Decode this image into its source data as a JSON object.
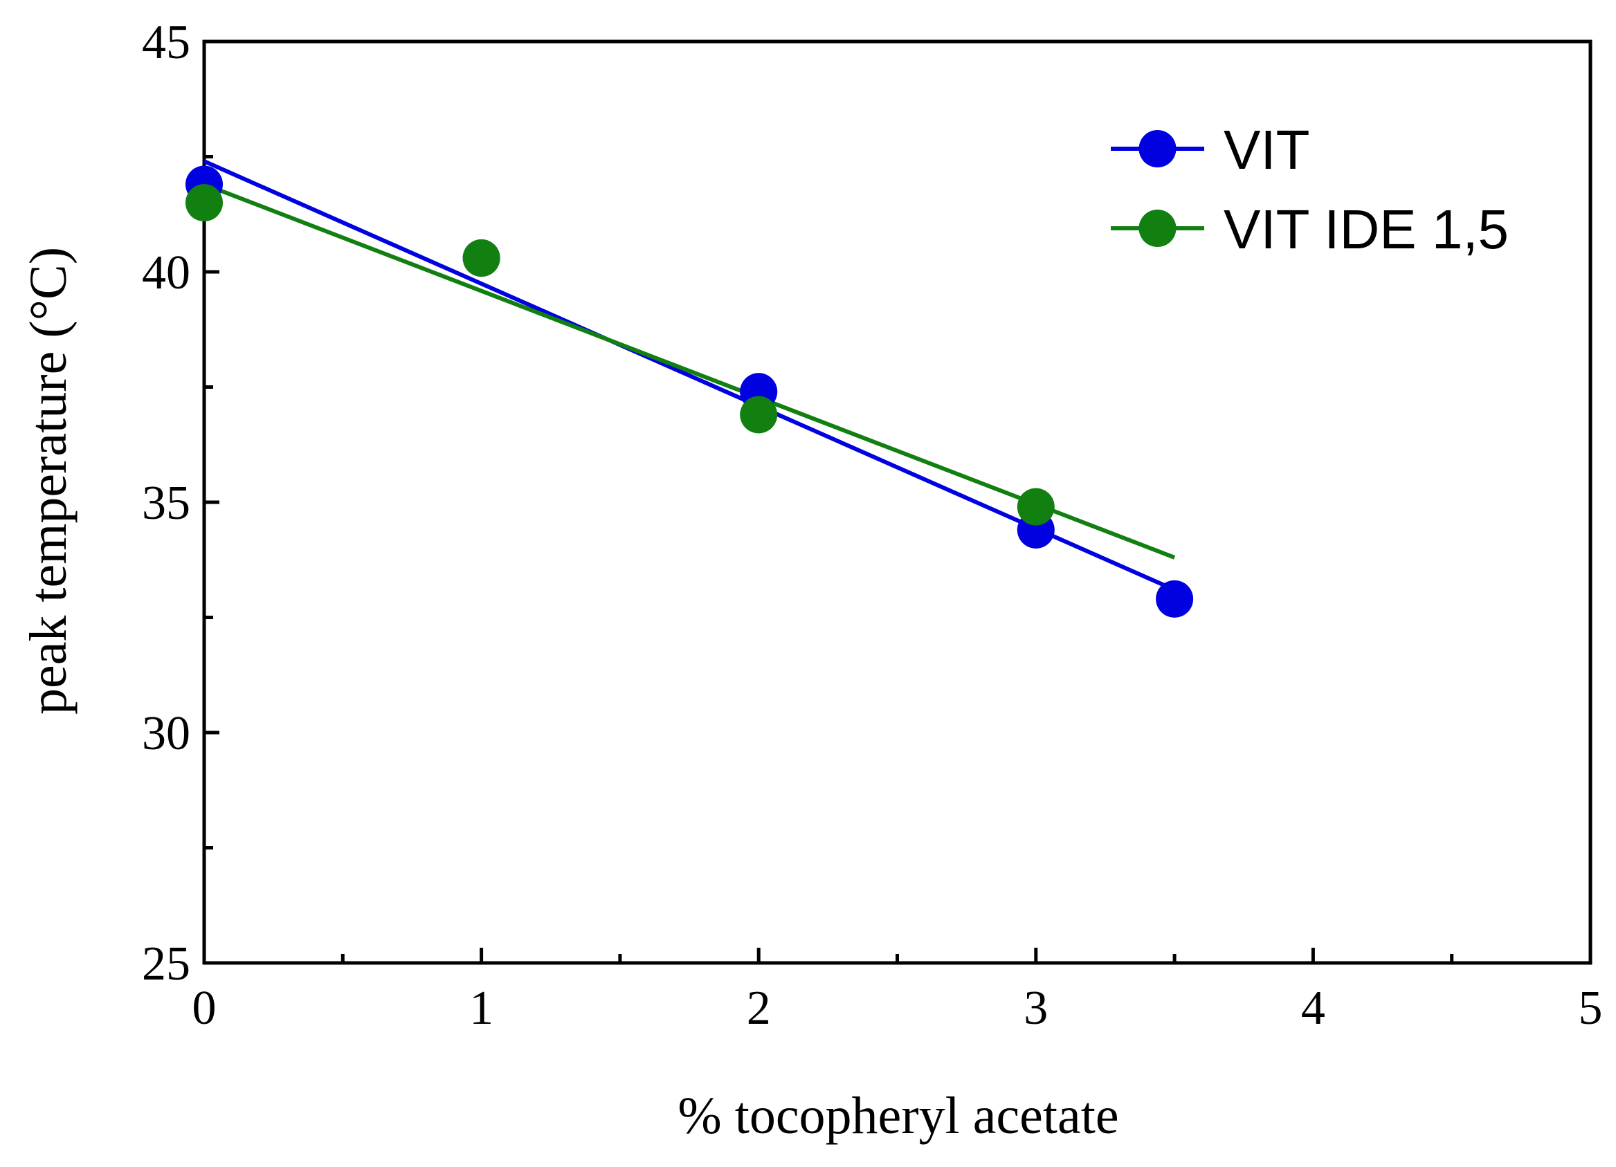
{
  "chart_data": {
    "type": "scatter",
    "title": "",
    "xlabel": "% tocopheryl acetate",
    "ylabel": "peak temperature (°C)",
    "xlim": [
      0,
      5
    ],
    "ylim": [
      25,
      45
    ],
    "x_major_ticks": [
      0,
      1,
      2,
      3,
      4,
      5
    ],
    "x_tick_labels": [
      "0",
      "1",
      "2",
      "3",
      "4",
      "5"
    ],
    "x_minor_ticks": [
      0.5,
      1.5,
      2.5,
      3.5,
      4.5
    ],
    "y_major_ticks": [
      25,
      30,
      35,
      40,
      45
    ],
    "y_tick_labels": [
      "25",
      "30",
      "35",
      "40",
      "45"
    ],
    "y_minor_ticks": [
      27.5,
      32.5,
      37.5,
      42.5
    ],
    "grid": false,
    "legend_position": "top-right",
    "series": [
      {
        "name": "VIT",
        "color": "#0000e0",
        "x": [
          0,
          1,
          2,
          3,
          3.5
        ],
        "y": [
          41.9,
          40.3,
          37.4,
          34.4,
          32.9
        ],
        "fit": {
          "x": [
            0,
            3.5
          ],
          "y": [
            42.4,
            33.1
          ]
        }
      },
      {
        "name": "VIT IDE 1,5",
        "color": "#118011",
        "x": [
          0,
          1,
          2,
          3
        ],
        "y": [
          41.5,
          40.3,
          36.9,
          34.9
        ],
        "fit": {
          "x": [
            0,
            3.5
          ],
          "y": [
            41.9,
            33.8
          ]
        }
      }
    ]
  }
}
